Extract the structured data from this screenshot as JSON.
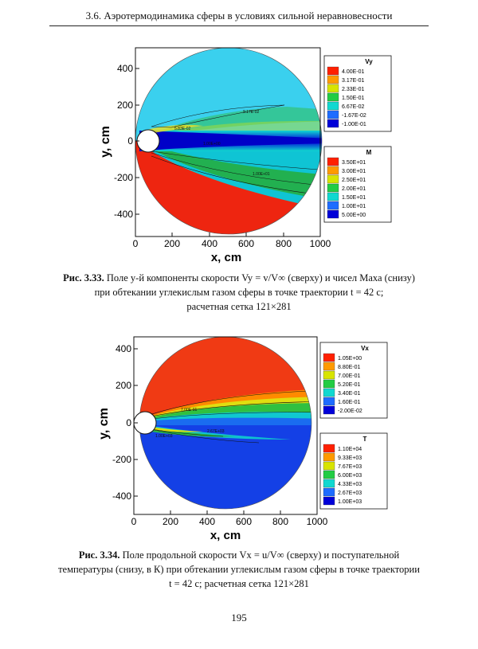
{
  "header": {
    "running_title": "3.6. Аэротермодинамика сферы в условиях сильной неравновесности"
  },
  "figure1": {
    "caption_label": "Рис. 3.33.",
    "caption_line1": "Поле y-й компоненты скорости  Vy = v/V∞  (сверху) и чисел Маха (снизу)",
    "caption_line2": "при обтекании углекислым газом сферы в точке траектории  t = 42 с;",
    "caption_line3": "расчетная сетка 121×281"
  },
  "figure2": {
    "caption_label": "Рис. 3.34.",
    "caption_line1": "Поле продольной скорости  Vx = u/V∞  (сверху) и поступательной",
    "caption_line2": "температуры (снизу, в К) при обтекании углекислым газом сферы в точке траектории",
    "caption_line3": "t = 42 с; расчетная сетка 121×281"
  },
  "page_number": "195",
  "chart_data": [
    {
      "type": "heatmap",
      "title": "",
      "xlabel": "x, cm",
      "ylabel": "y, cm",
      "xlim": [
        0,
        1000
      ],
      "ylim": [
        -500,
        500
      ],
      "xticks": [
        "0",
        "200",
        "400",
        "600",
        "800",
        "1000"
      ],
      "yticks": [
        "400",
        "200",
        "0",
        "-200",
        "-400"
      ],
      "legends": [
        {
          "title": "Vy",
          "levels": [
            "4.00E-01",
            "3.17E-01",
            "2.33E-01",
            "1.50E-01",
            "6.67E-02",
            "-1.67E-02",
            "-1.00E-01"
          ],
          "colors": [
            "#ff2000",
            "#ff9a00",
            "#d8e400",
            "#22cc44",
            "#10d8d0",
            "#1e6cff",
            "#0000d8"
          ]
        },
        {
          "title": "M",
          "levels": [
            "3.50E+01",
            "3.00E+01",
            "2.50E+01",
            "2.00E+01",
            "1.50E+01",
            "1.00E+01",
            "5.00E+00"
          ],
          "colors": [
            "#ff2000",
            "#ff9a00",
            "#d8e400",
            "#22cc44",
            "#10d8d0",
            "#1e6cff",
            "#0000d8"
          ]
        }
      ],
      "contour_labels": [
        "9.17E-02",
        "5.83E-02",
        "1.00E+00",
        "1.00E+01"
      ]
    },
    {
      "type": "heatmap",
      "title": "",
      "xlabel": "x, cm",
      "ylabel": "y, cm",
      "xlim": [
        0,
        1000
      ],
      "ylim": [
        -500,
        500
      ],
      "xticks": [
        "0",
        "200",
        "400",
        "600",
        "800",
        "1000"
      ],
      "yticks": [
        "400",
        "200",
        "0",
        "-200",
        "-400"
      ],
      "legends": [
        {
          "title": "Vx",
          "levels": [
            "1.05E+00",
            "8.80E-01",
            "7.00E-01",
            "5.20E-01",
            "3.40E-01",
            "1.60E-01",
            "-2.00E-02"
          ],
          "colors": [
            "#ff2000",
            "#ff9a00",
            "#d8e400",
            "#22cc44",
            "#10d8d0",
            "#1e6cff",
            "#0000d8"
          ]
        },
        {
          "title": "T",
          "levels": [
            "1.10E+04",
            "9.33E+03",
            "7.67E+03",
            "6.00E+03",
            "4.33E+03",
            "2.67E+03",
            "1.00E+03"
          ],
          "colors": [
            "#ff2000",
            "#ff9a00",
            "#d8e400",
            "#22cc44",
            "#10d8d0",
            "#1e6cff",
            "#0000d8"
          ]
        }
      ],
      "contour_labels": [
        "7.00E-01",
        "1.00E+03",
        "2.67E+03"
      ]
    }
  ]
}
